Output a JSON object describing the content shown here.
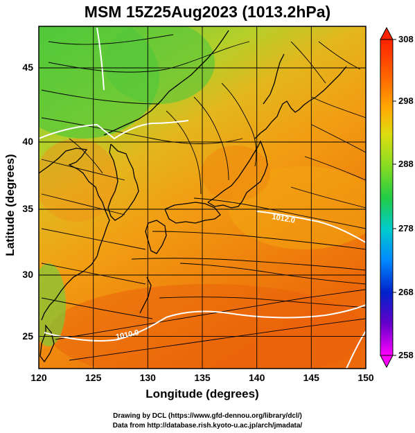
{
  "title": "MSM 15Z25Aug2023 (1013.2hPa)",
  "xlabel": "Longitude (degrees)",
  "ylabel": "Latitude  (degrees)",
  "x_ticks": [
    "120",
    "125",
    "130",
    "135",
    "140",
    "145",
    "150"
  ],
  "y_ticks": [
    "25",
    "30",
    "35",
    "40",
    "45"
  ],
  "colorbar": {
    "ticks": [
      "308",
      "298",
      "288",
      "278",
      "268",
      "258"
    ],
    "colors": [
      "#ff00ff",
      "#0000cc",
      "#0066ff",
      "#00cccc",
      "#00cc66",
      "#33cc33",
      "#88dd22",
      "#dddd11",
      "#ffaa00",
      "#ff6600",
      "#ff2200"
    ]
  },
  "contour_labels": [
    "1012.0",
    "1010.0"
  ],
  "credits": {
    "line1": "Drawing by DCL (https://www.gfd-dennou.org/library/dcl/)",
    "line2": "Data from http://database.rish.kyoto-u.ac.jp/arch/jmadata/"
  },
  "map": {
    "lon_range": [
      120,
      150
    ],
    "lat_range": [
      22.5,
      47.6
    ],
    "field": "temperature_K",
    "colors": {
      "cool_north": "#5ccc3a",
      "mid": "#d6c01f",
      "warm": "#f08d10",
      "hot_south": "#ec6a0a",
      "land_coast": "#000000",
      "isobar": "#ffffff",
      "grid": "#000000"
    }
  }
}
